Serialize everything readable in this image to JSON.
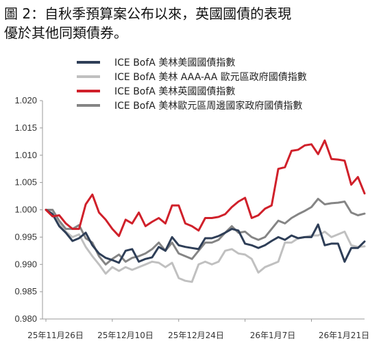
{
  "title_lines": [
    "圖 2：自秋季預算案公布以來，英國國債的表現",
    "優於其他同類債券。"
  ],
  "chart_data": {
    "type": "line",
    "title": "圖 2：自秋季預算案公布以來，英國國債的表現優於其他同類債券。",
    "xlabel": "",
    "ylabel": "",
    "ylim": [
      0.98,
      1.02
    ],
    "yticks": [
      "0.980",
      "0.985",
      "0.990",
      "0.995",
      "1.000",
      "1.005",
      "1.010",
      "1.015",
      "1.020"
    ],
    "x_tick_labels": [
      "25年11月26日",
      "25年12月10日",
      "25年12月24日",
      "26年1月7日",
      "26年1月21日"
    ],
    "legend_position": "top",
    "grid": false,
    "series": [
      {
        "name": "ICE BofA 美林美國國債指數",
        "color": "#2e3e57",
        "values": [
          1.0,
          0.9992,
          0.997,
          0.9958,
          0.9943,
          0.9948,
          0.9958,
          0.9935,
          0.992,
          0.9912,
          0.9908,
          0.9903,
          0.9925,
          0.9928,
          0.9905,
          0.991,
          0.9913,
          0.9932,
          0.9925,
          0.995,
          0.9935,
          0.9932,
          0.993,
          0.9928,
          0.9948,
          0.9948,
          0.9952,
          0.9958,
          0.9965,
          0.9962,
          0.9938,
          0.9935,
          0.993,
          0.9935,
          0.9943,
          0.995,
          0.9945,
          0.9953,
          0.9948,
          0.995,
          0.995,
          0.9973,
          0.9935,
          0.9938,
          0.9938,
          0.9905,
          0.993,
          0.993,
          0.9942
        ]
      },
      {
        "name": "ICE BofA 美林 AAA-AA 歐元區政府國債指數",
        "color": "#c0c0c0",
        "values": [
          1.0,
          0.9995,
          0.9975,
          0.996,
          0.995,
          0.9955,
          0.9932,
          0.9915,
          0.99,
          0.9883,
          0.9895,
          0.9888,
          0.9895,
          0.989,
          0.9895,
          0.99,
          0.9905,
          0.9903,
          0.9895,
          0.9903,
          0.9875,
          0.987,
          0.9868,
          0.99,
          0.9905,
          0.99,
          0.9905,
          0.9925,
          0.9928,
          0.992,
          0.9918,
          0.991,
          0.9885,
          0.9895,
          0.99,
          0.9905,
          0.994,
          0.994,
          0.9948,
          0.995,
          0.9953,
          0.9953,
          0.996,
          0.995,
          0.9955,
          0.996,
          0.9935,
          0.9932,
          0.9933
        ]
      },
      {
        "name": "ICE BofA 美林英國國債指數",
        "color": "#d0202a",
        "values": [
          1.0,
          0.9988,
          0.999,
          0.9975,
          0.9965,
          0.9965,
          1.001,
          1.0028,
          0.9995,
          0.9982,
          0.9965,
          0.9952,
          0.9982,
          0.9975,
          0.9995,
          0.997,
          0.9978,
          0.9985,
          0.9975,
          1.0008,
          1.0008,
          0.9975,
          0.997,
          0.9962,
          0.9985,
          0.9985,
          0.9987,
          0.9992,
          1.0005,
          1.0015,
          1.0022,
          0.9985,
          0.999,
          1.0002,
          1.0008,
          1.0075,
          1.0078,
          1.0108,
          1.011,
          1.0118,
          1.012,
          1.0102,
          1.0127,
          1.0093,
          1.0092,
          1.009,
          1.0046,
          1.006,
          1.003
        ]
      },
      {
        "name": "ICE BofA 美林歐元區周邊國家政府國債指數",
        "color": "#858585",
        "values": [
          1.0,
          1.0,
          0.998,
          0.9965,
          0.9965,
          0.9972,
          0.9948,
          0.994,
          0.9915,
          0.99,
          0.991,
          0.9918,
          0.9905,
          0.9912,
          0.9915,
          0.992,
          0.9928,
          0.994,
          0.9925,
          0.994,
          0.992,
          0.9915,
          0.991,
          0.9925,
          0.994,
          0.994,
          0.9945,
          0.9958,
          0.997,
          0.9958,
          0.996,
          0.995,
          0.9945,
          0.995,
          0.9965,
          0.998,
          0.9975,
          0.9985,
          0.9992,
          0.9998,
          1.0005,
          1.002,
          1.001,
          1.0012,
          1.0013,
          1.0015,
          0.9995,
          0.999,
          0.9993
        ]
      }
    ]
  }
}
